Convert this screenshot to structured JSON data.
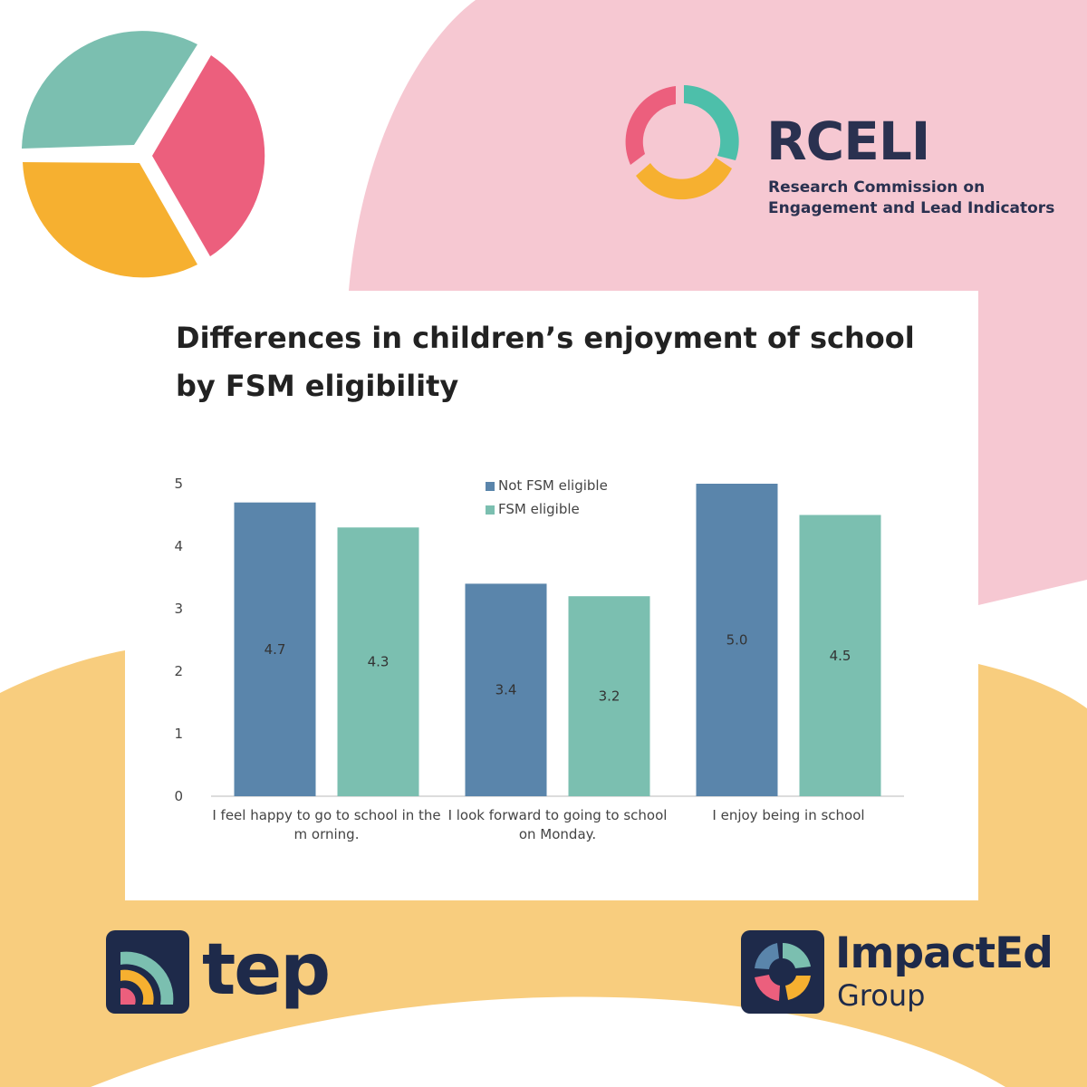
{
  "brand": {
    "rceli_name": "RCELI",
    "rceli_full_line1": "Research Commission on",
    "rceli_full_line2": "Engagement and Lead Indicators",
    "tep_name": "tep",
    "impacted_name": "ImpactEd",
    "impacted_sub": "Group"
  },
  "colors": {
    "pink": "#ec5f7d",
    "teal": "#7bbfb0",
    "yellow": "#f6b030",
    "bg_pink": "#f6c8d2",
    "bg_yellow": "#f8cd7e",
    "navy": "#1e2a4a",
    "series_blue": "#5a85ab",
    "series_teal": "#7bbfb0"
  },
  "chart_data": {
    "type": "bar",
    "title": "Differences in children’s enjoyment of school by FSM eligibility",
    "categories": [
      [
        "I feel happy to go to school in the",
        "m orning."
      ],
      [
        "I look forward to going to school",
        "on Monday."
      ],
      [
        "I enjoy being in school"
      ]
    ],
    "series": [
      {
        "name": "Not FSM eligible",
        "values": [
          4.7,
          3.4,
          5.0
        ],
        "labels": [
          "4.7",
          "3.4",
          "5.0"
        ],
        "color": "#5a85ab"
      },
      {
        "name": "FSM eligible",
        "values": [
          4.3,
          3.2,
          4.5
        ],
        "labels": [
          "4.3",
          "3.2",
          "4.5"
        ],
        "color": "#7bbfb0"
      }
    ],
    "yticks": [
      "0",
      "1",
      "2",
      "3",
      "4",
      "5"
    ],
    "ylim": [
      0,
      5
    ],
    "xlabel": "",
    "ylabel": "",
    "legend": "top-center",
    "grid": false
  }
}
